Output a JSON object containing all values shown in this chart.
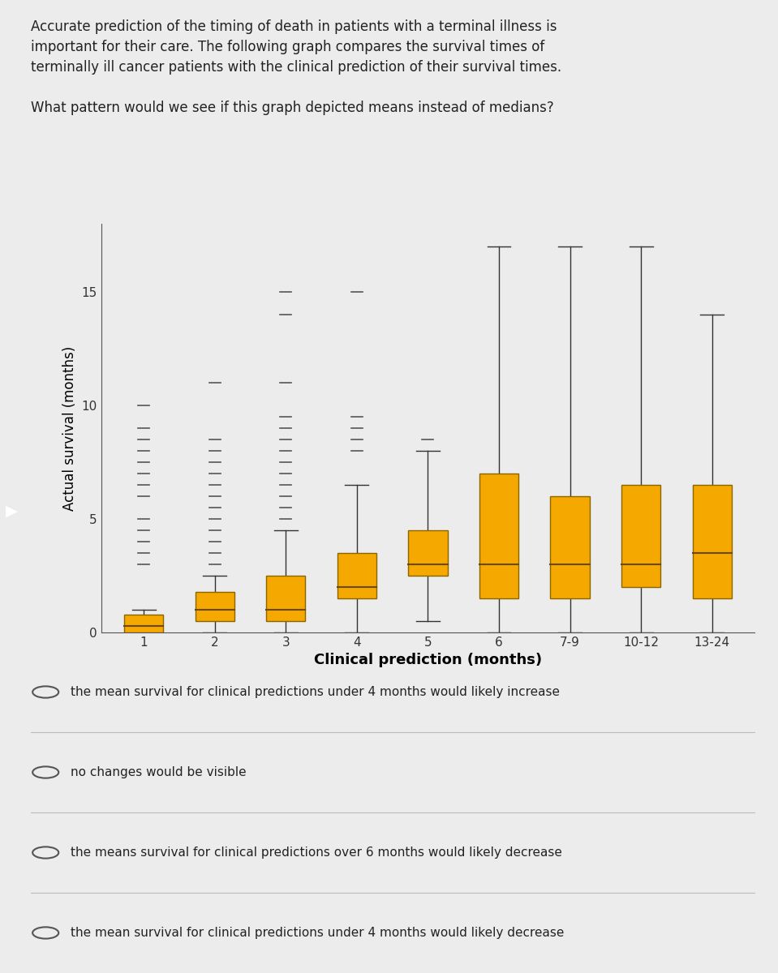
{
  "categories": [
    "1",
    "2",
    "3",
    "4",
    "5",
    "6",
    "7-9",
    "10-12",
    "13-24"
  ],
  "boxes": [
    {
      "q1": 0.0,
      "median": 0.3,
      "q3": 0.8,
      "whisker_low": 0.0,
      "whisker_high": 1.0
    },
    {
      "q1": 0.5,
      "median": 1.0,
      "q3": 1.8,
      "whisker_low": 0.0,
      "whisker_high": 2.5
    },
    {
      "q1": 0.5,
      "median": 1.0,
      "q3": 2.5,
      "whisker_low": 0.0,
      "whisker_high": 4.5
    },
    {
      "q1": 1.5,
      "median": 2.0,
      "q3": 3.5,
      "whisker_low": 0.0,
      "whisker_high": 6.5
    },
    {
      "q1": 2.5,
      "median": 3.0,
      "q3": 4.5,
      "whisker_low": 0.5,
      "whisker_high": 8.0
    },
    {
      "q1": 1.5,
      "median": 3.0,
      "q3": 7.0,
      "whisker_low": 0.0,
      "whisker_high": 17.0
    },
    {
      "q1": 1.5,
      "median": 3.0,
      "q3": 6.0,
      "whisker_low": 0.0,
      "whisker_high": 17.0
    },
    {
      "q1": 2.0,
      "median": 3.0,
      "q3": 6.5,
      "whisker_low": 0.0,
      "whisker_high": 17.0
    },
    {
      "q1": 1.5,
      "median": 3.5,
      "q3": 6.5,
      "whisker_low": 0.0,
      "whisker_high": 14.0
    }
  ],
  "outliers": [
    [
      10.0,
      9.0,
      8.5,
      8.0,
      7.5,
      7.0,
      6.5,
      6.0,
      5.0,
      4.5,
      4.0,
      3.5,
      3.0
    ],
    [
      11.0,
      8.5,
      8.0,
      7.5,
      7.0,
      6.5,
      6.0,
      5.5,
      5.0,
      4.5,
      4.0,
      3.5,
      3.0
    ],
    [
      15.0,
      14.0,
      11.0,
      9.5,
      9.0,
      8.5,
      8.0,
      7.5,
      7.0,
      6.5,
      6.0,
      5.5,
      5.0
    ],
    [
      15.0,
      9.5,
      9.0,
      8.5,
      8.0
    ],
    [
      8.5
    ],
    [],
    [],
    [],
    []
  ],
  "box_color": "#F5A800",
  "box_edge_color": "#8B6500",
  "median_color": "#6B4A00",
  "whisker_color": "#333333",
  "cap_color": "#333333",
  "flier_color": "#555555",
  "background_color": "#ECECEC",
  "plot_bg_color": "#ECECEC",
  "ylabel": "Actual survival (months)",
  "xlabel": "Clinical prediction (months)",
  "ylim": [
    0,
    18
  ],
  "yticks": [
    0,
    5,
    10,
    15
  ],
  "title_text": "Accurate prediction of the timing of death in patients with a terminal illness is\nimportant for their care. The following graph compares the survival times of\nterminally ill cancer patients with the clinical prediction of their survival times.\n\nWhat pattern would we see if this graph depicted means instead of medians?",
  "options": [
    "the mean survival for clinical predictions under 4 months would likely increase",
    "no changes would be visible",
    "the means survival for clinical predictions over 6 months would likely decrease",
    "the mean survival for clinical predictions under 4 months would likely decrease"
  ],
  "option_fontsize": 11,
  "title_fontsize": 12
}
